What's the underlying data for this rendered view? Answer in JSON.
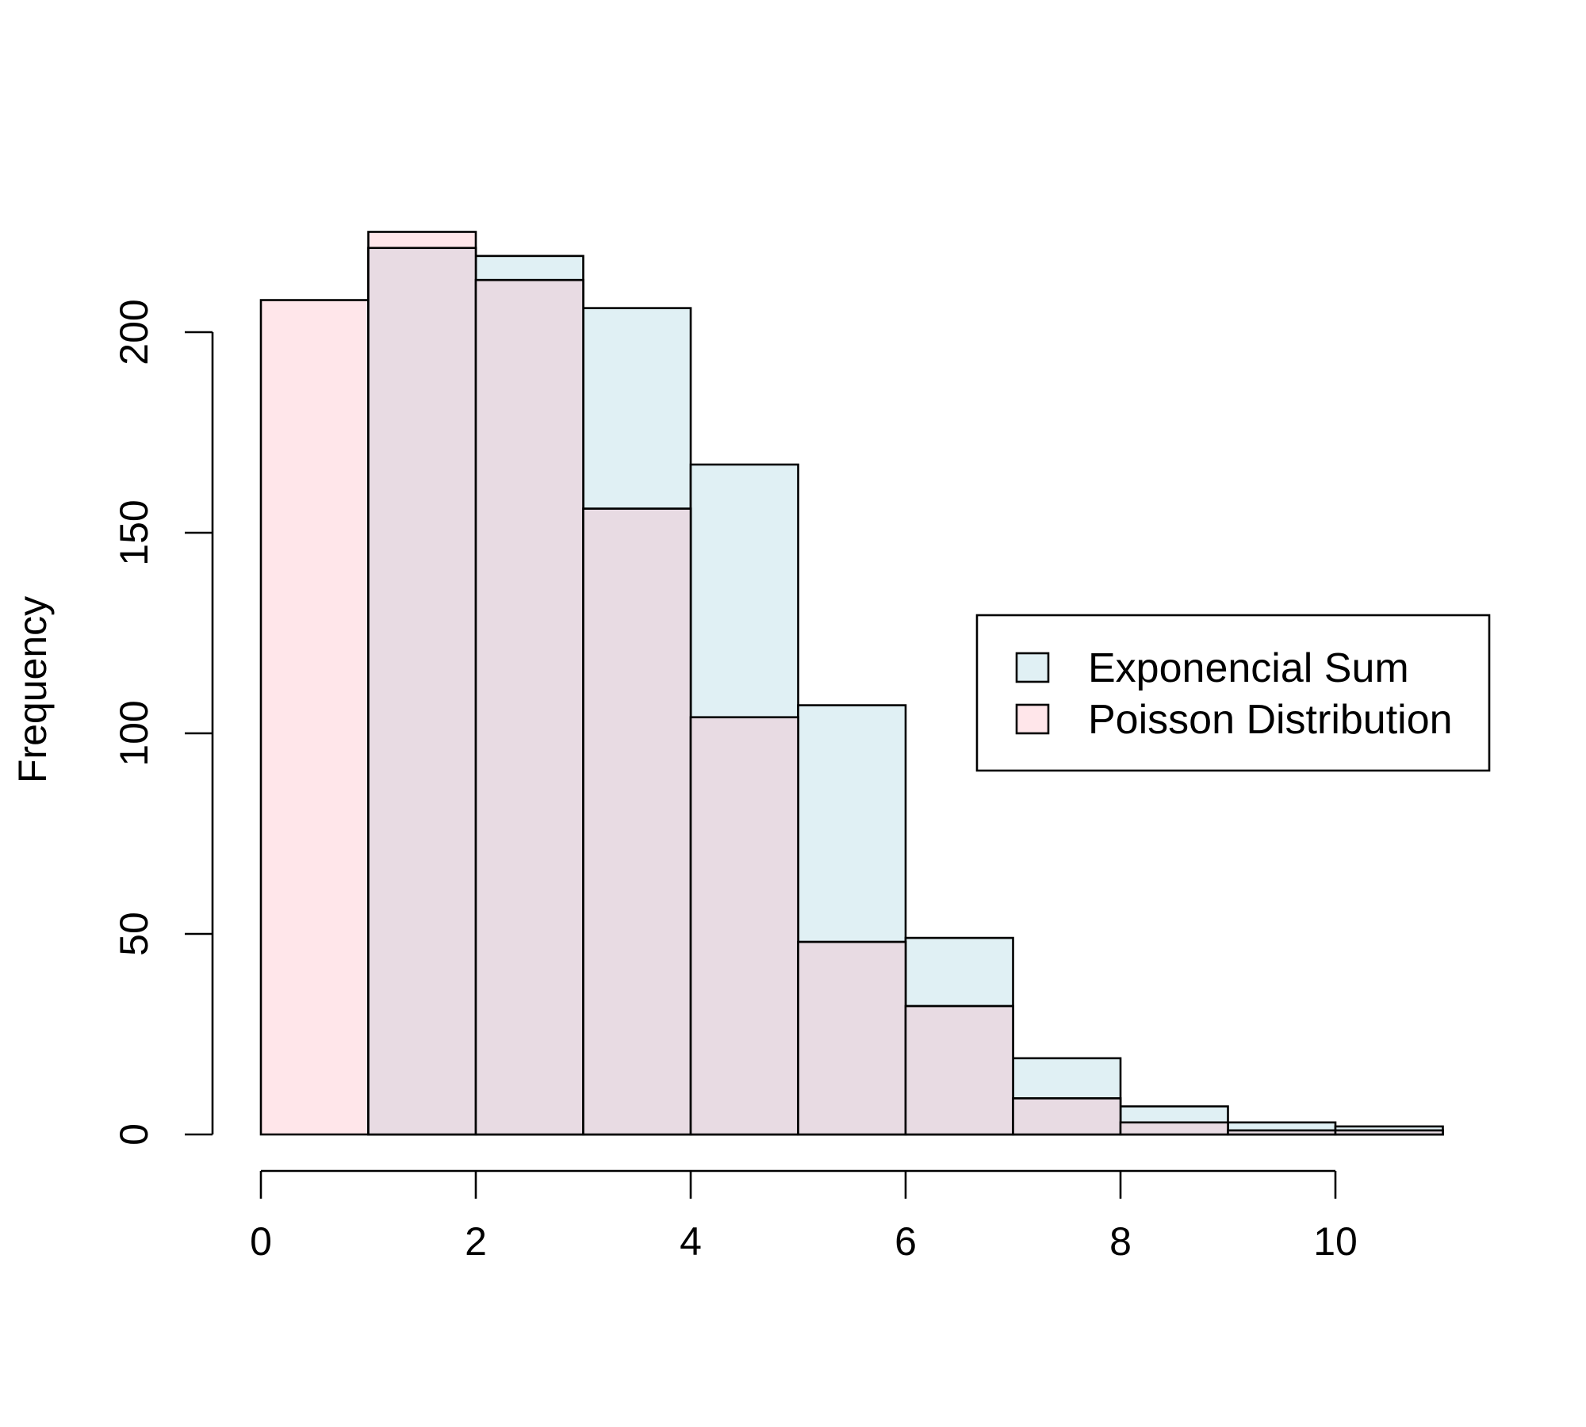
{
  "chart_data": {
    "type": "bar",
    "title": "",
    "xlabel": "",
    "ylabel": "Frequency",
    "bin_edges": [
      0,
      1,
      2,
      3,
      4,
      5,
      6,
      7,
      8,
      9,
      10,
      11
    ],
    "xlim": [
      0,
      11
    ],
    "ylim": [
      0,
      225
    ],
    "x_ticks": [
      0,
      2,
      4,
      6,
      8,
      10
    ],
    "y_ticks": [
      0,
      50,
      100,
      150,
      200
    ],
    "grid": false,
    "legend_position": "right",
    "series": [
      {
        "name": "Exponencial Sum",
        "color": "#e0f0f4",
        "values": [
          0,
          221,
          219,
          206,
          167,
          107,
          49,
          19,
          7,
          3,
          2
        ]
      },
      {
        "name": "Poisson Distribution",
        "color": "#ffe6ea",
        "values": [
          208,
          225,
          213,
          156,
          104,
          48,
          32,
          9,
          3,
          1,
          1
        ]
      }
    ],
    "overlap_color": "#e8dbe3"
  }
}
